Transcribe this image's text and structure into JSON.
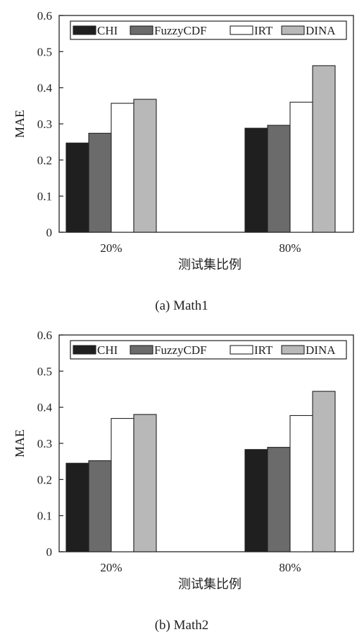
{
  "colors": {
    "CHI": "#1f1f1f",
    "FuzzyCDF": "#6b6b6b",
    "IRT": "#ffffff",
    "DINA": "#b8b8b8",
    "outline": "#222222"
  },
  "chart_data": [
    {
      "type": "bar",
      "caption": "(a) Math1",
      "categories": [
        "20%",
        "80%"
      ],
      "series": [
        {
          "name": "CHI",
          "values": [
            0.247,
            0.288
          ]
        },
        {
          "name": "FuzzyCDF",
          "values": [
            0.274,
            0.296
          ]
        },
        {
          "name": "IRT",
          "values": [
            0.357,
            0.36
          ]
        },
        {
          "name": "DINA",
          "values": [
            0.368,
            0.461
          ]
        }
      ],
      "xlabel": "测试集比例",
      "ylabel": "MAE",
      "ylim": [
        0,
        0.6
      ],
      "yticks": [
        "0",
        "0.1",
        "0.2",
        "0.3",
        "0.4",
        "0.5",
        "0.6"
      ],
      "legend_position": "top"
    },
    {
      "type": "bar",
      "caption": "(b) Math2",
      "categories": [
        "20%",
        "80%"
      ],
      "series": [
        {
          "name": "CHI",
          "values": [
            0.245,
            0.283
          ]
        },
        {
          "name": "FuzzyCDF",
          "values": [
            0.252,
            0.289
          ]
        },
        {
          "name": "IRT",
          "values": [
            0.369,
            0.377
          ]
        },
        {
          "name": "DINA",
          "values": [
            0.38,
            0.444
          ]
        }
      ],
      "xlabel": "测试集比例",
      "ylabel": "MAE",
      "ylim": [
        0,
        0.6
      ],
      "yticks": [
        "0",
        "0.1",
        "0.2",
        "0.3",
        "0.4",
        "0.5",
        "0.6"
      ],
      "legend_position": "top"
    }
  ]
}
